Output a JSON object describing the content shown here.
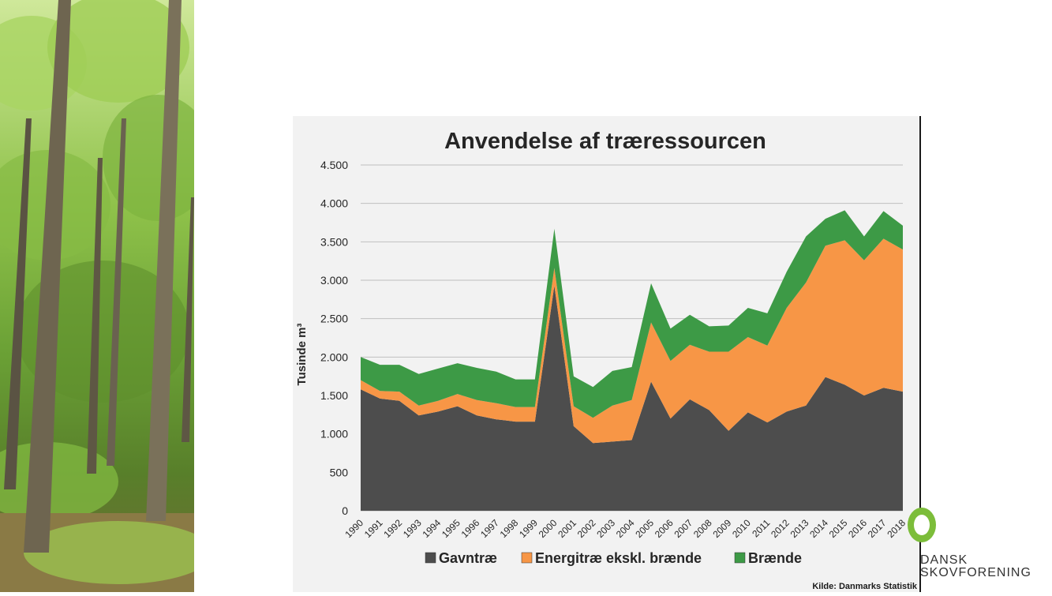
{
  "colors": {
    "gavntrae": "#4d4d4d",
    "energitrae": "#f79646",
    "braende": "#3d9a46",
    "grid": "#bfbfbf",
    "panel": "#f2f2f2"
  },
  "logo": {
    "line1": "DANSK",
    "line2": "SKOVFORENING"
  },
  "source": "Kilde: Danmarks Statistik",
  "chart_data": {
    "type": "area",
    "stacked": true,
    "title": "Anvendelse af træressourcen",
    "ylabel": "Tusinde m³",
    "xlabel": "",
    "ylim": [
      0,
      4500
    ],
    "yticks": [
      0,
      500,
      1000,
      1500,
      2000,
      2500,
      3000,
      3500,
      4000,
      4500
    ],
    "ytick_labels": [
      "0",
      "500",
      "1.000",
      "1.500",
      "2.000",
      "2.500",
      "3.000",
      "3.500",
      "4.000",
      "4.500"
    ],
    "grid": true,
    "legend_position": "bottom",
    "categories": [
      "1990",
      "1991",
      "1992",
      "1993",
      "1994",
      "1995",
      "1996",
      "1997",
      "1998",
      "1999",
      "2000",
      "2001",
      "2002",
      "2003",
      "2004",
      "2005",
      "2006",
      "2007",
      "2008",
      "2009",
      "2010",
      "2011",
      "2012",
      "2013",
      "2014",
      "2015",
      "2016",
      "2017",
      "2018"
    ],
    "series": [
      {
        "name": "Gavntræ",
        "values": [
          1580,
          1460,
          1430,
          1240,
          1290,
          1360,
          1240,
          1190,
          1160,
          1160,
          2930,
          1100,
          880,
          900,
          920,
          1680,
          1200,
          1450,
          1310,
          1040,
          1280,
          1150,
          1290,
          1370,
          1740,
          1640,
          1500,
          1600,
          1550
        ]
      },
      {
        "name": "Energitræ ekskl. brænde",
        "values": [
          120,
          100,
          120,
          130,
          140,
          160,
          200,
          210,
          190,
          190,
          230,
          260,
          330,
          470,
          520,
          770,
          750,
          710,
          760,
          1030,
          980,
          1000,
          1350,
          1600,
          1710,
          1880,
          1760,
          1940,
          1850
        ]
      },
      {
        "name": "Brænde",
        "values": [
          300,
          340,
          350,
          410,
          420,
          400,
          420,
          410,
          360,
          360,
          510,
          390,
          400,
          450,
          430,
          510,
          420,
          390,
          330,
          340,
          380,
          420,
          470,
          600,
          350,
          390,
          310,
          360,
          310
        ]
      }
    ]
  }
}
